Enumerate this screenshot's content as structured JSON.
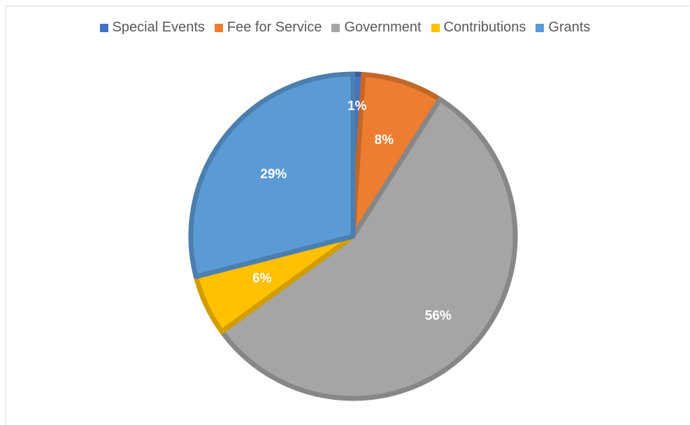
{
  "chart_data": {
    "type": "pie",
    "title": "",
    "legend_position": "top",
    "slices": [
      {
        "name": "Special Events",
        "value": 1,
        "label": "1%",
        "color": "#4472C4"
      },
      {
        "name": "Fee for Service",
        "value": 8,
        "label": "8%",
        "color": "#ED7D31"
      },
      {
        "name": "Government",
        "value": 56,
        "label": "56%",
        "color": "#A5A5A5"
      },
      {
        "name": "Contributions",
        "value": 6,
        "label": "6%",
        "color": "#FFC000"
      },
      {
        "name": "Grants",
        "value": 29,
        "label": "29%",
        "color": "#5B9BD5"
      }
    ]
  }
}
